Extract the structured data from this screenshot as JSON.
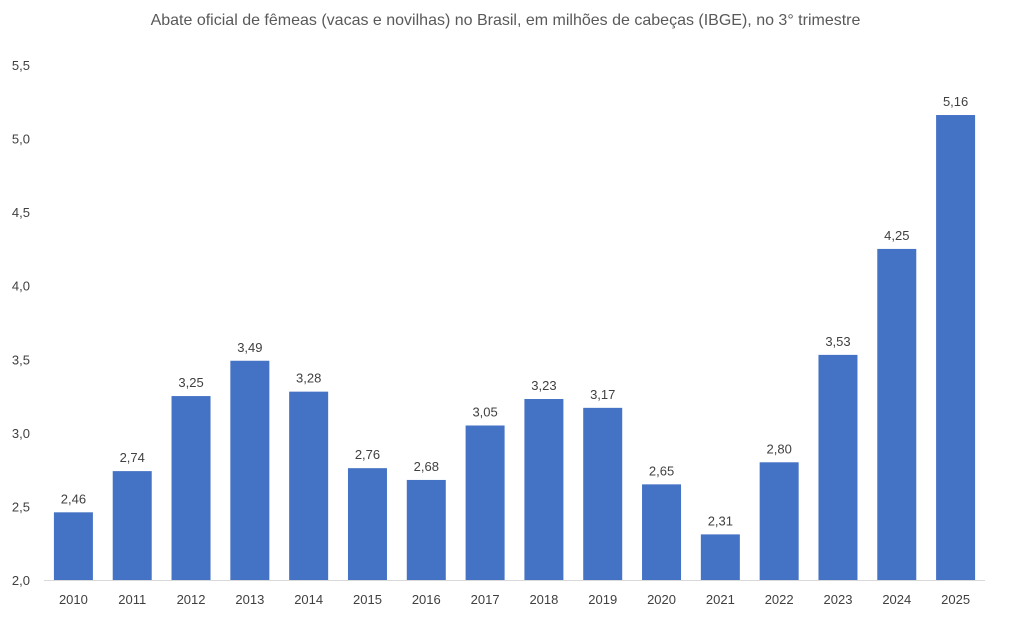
{
  "chart_data": {
    "type": "bar",
    "title": "Abate oficial de fêmeas (vacas e novilhas) no Brasil, em milhões de cabeças (IBGE), no 3° trimestre",
    "categories": [
      "2010",
      "2011",
      "2012",
      "2013",
      "2014",
      "2015",
      "2016",
      "2017",
      "2018",
      "2019",
      "2020",
      "2021",
      "2022",
      "2023",
      "2024",
      "2025"
    ],
    "values": [
      2.46,
      2.74,
      3.25,
      3.49,
      3.28,
      2.76,
      2.68,
      3.05,
      3.23,
      3.17,
      2.65,
      2.31,
      2.8,
      3.53,
      4.25,
      5.16
    ],
    "data_labels": [
      "2,46",
      "2,74",
      "3,25",
      "3,49",
      "3,28",
      "2,76",
      "2,68",
      "3,05",
      "3,23",
      "3,17",
      "2,65",
      "2,31",
      "2,80",
      "3,53",
      "4,25",
      "5,16"
    ],
    "y_ticks": [
      2.0,
      2.5,
      3.0,
      3.5,
      4.0,
      4.5,
      5.0,
      5.5
    ],
    "y_tick_labels": [
      "2,0",
      "2,5",
      "3,0",
      "3,5",
      "4,0",
      "4,5",
      "5,0",
      "5,5"
    ],
    "ylim": [
      2.0,
      5.5
    ],
    "xlabel": "",
    "ylabel": "",
    "grid": false,
    "legend": "none",
    "colors": {
      "bar": "#4472c4",
      "text": "#404040",
      "axis": "#d9d9d9"
    }
  }
}
